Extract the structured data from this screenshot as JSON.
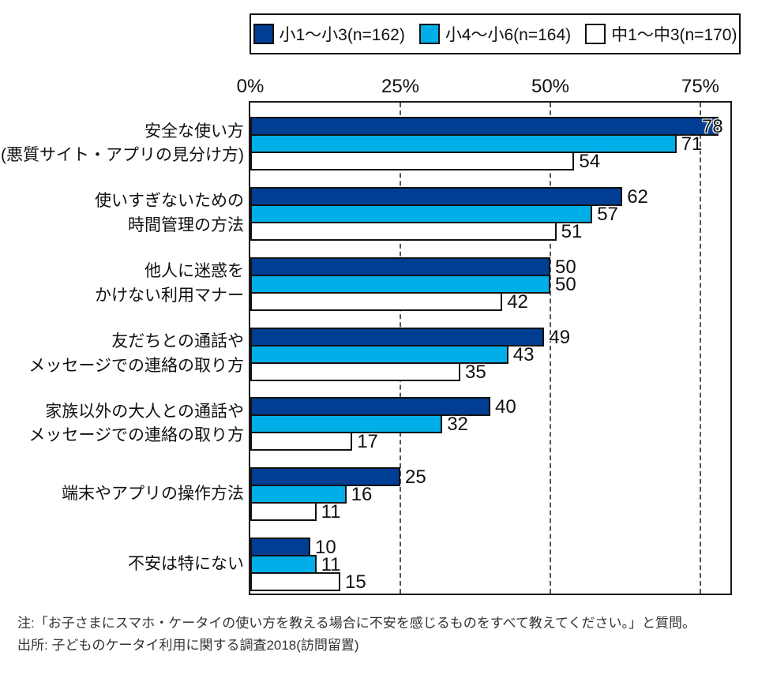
{
  "chart_data": {
    "type": "bar",
    "orientation": "horizontal",
    "x_axis": {
      "ticks": [
        {
          "label": "0%",
          "value": 0
        },
        {
          "label": "25%",
          "value": 25
        },
        {
          "label": "50%",
          "value": 50
        },
        {
          "label": "75%",
          "value": 75
        }
      ],
      "xlim": [
        0,
        80
      ],
      "gridlines": "dashed-vertical-at-25-50-75"
    },
    "categories": [
      "安全な使い方\n(悪質サイト・アプリの見分け方)",
      "使いすぎないための\n時間管理の方法",
      "他人に迷惑を\nかけない利用マナー",
      "友だちとの通話や\nメッセージでの連絡の取り方",
      "家族以外の大人との通話や\nメッセージでの連絡の取り方",
      "端末やアプリの操作方法",
      "不安は特にない"
    ],
    "series": [
      {
        "name": "小1〜小3(n=162)",
        "color": "#003E94",
        "values": [
          78,
          62,
          50,
          49,
          40,
          25,
          10
        ]
      },
      {
        "name": "小4〜小6(n=164)",
        "color": "#00AEE8",
        "values": [
          71,
          57,
          50,
          43,
          32,
          16,
          11
        ]
      },
      {
        "name": "中1〜中3(n=170)",
        "color": "#FFFFFF",
        "values": [
          54,
          51,
          42,
          35,
          17,
          11,
          15
        ]
      }
    ],
    "value_labels": true,
    "legend_position": "top"
  },
  "notes": {
    "question": "注:「お子さまにスマホ・ケータイの使い方を教える場合に不安を感じるものをすべて教えてください。」と質問。",
    "source": "出所: 子どものケータイ利用に関する調査2018(訪問留置)"
  }
}
